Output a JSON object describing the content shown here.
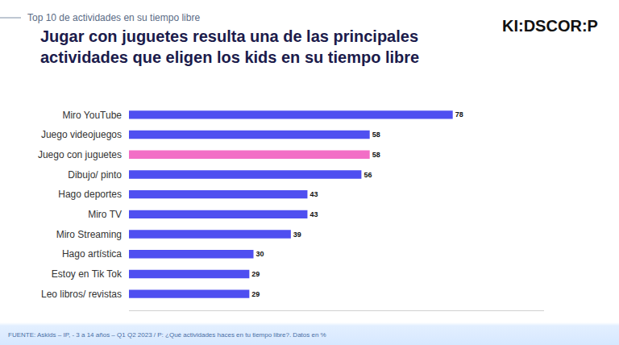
{
  "chart_data": {
    "type": "bar",
    "orientation": "horizontal",
    "header": "Top 10 de actividades en su tiempo libre",
    "logo": "KI:DSCOR:P",
    "title": "Jugar con juguetes resulta una de las principales actividades que eligen los kids en su tiempo libre",
    "source": "FUENTE: Askids – IP, - 3 a 14 años – Q1 Q2 2023 / P: ¿Qué actividades haces en tu tiempo libre?. Datos en %",
    "categories": [
      "Miro YouTube",
      "Juego videojuegos",
      "Juego con juguetes",
      "Dibujo/ pinto",
      "Hago deportes",
      "Miro TV",
      "Miro Streaming",
      "Hago artística",
      "Estoy en Tik Tok",
      "Leo libros/ revistas"
    ],
    "values": [
      78,
      58,
      58,
      56,
      43,
      43,
      39,
      30,
      29,
      29
    ],
    "colors": [
      "#4f4ff0",
      "#4f4ff0",
      "#f26ec6",
      "#4f4ff0",
      "#4f4ff0",
      "#4f4ff0",
      "#4f4ff0",
      "#4f4ff0",
      "#4f4ff0",
      "#4f4ff0"
    ],
    "xlim": [
      0,
      100
    ],
    "xticks": [],
    "tick_labels": "y",
    "data_labels": true,
    "grid": false
  }
}
